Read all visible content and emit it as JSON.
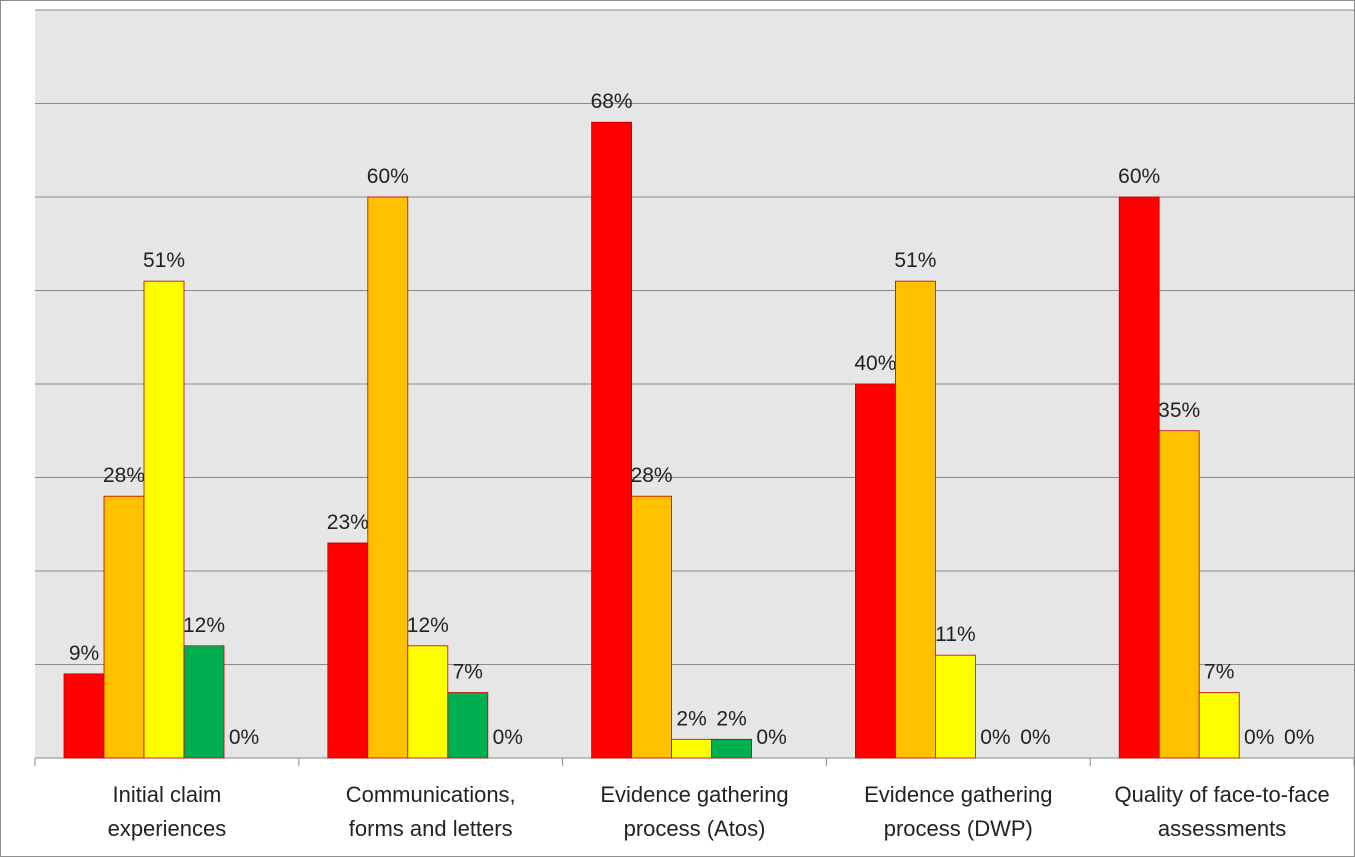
{
  "chart_data": {
    "type": "bar",
    "categories": [
      [
        "Initial claim",
        "experiences"
      ],
      [
        "Communications,",
        "forms and letters"
      ],
      [
        "Evidence gathering",
        "process (Atos)"
      ],
      [
        "Evidence gathering",
        "process (DWP)"
      ],
      [
        "Quality of face-to-face",
        "assessments"
      ]
    ],
    "series": [
      {
        "values": [
          9,
          23,
          68,
          40,
          60
        ],
        "labels": [
          "9%",
          "23%",
          "68%",
          "40%",
          "60%"
        ]
      },
      {
        "values": [
          28,
          60,
          28,
          51,
          35
        ],
        "labels": [
          "28%",
          "60%",
          "28%",
          "51%",
          "35%"
        ]
      },
      {
        "values": [
          51,
          12,
          2,
          11,
          7
        ],
        "labels": [
          "51%",
          "12%",
          "2%",
          "11%",
          "7%"
        ]
      },
      {
        "values": [
          12,
          7,
          2,
          0,
          0
        ],
        "labels": [
          "12%",
          "7%",
          "2%",
          "0%",
          "0%"
        ]
      },
      {
        "values": [
          0,
          0,
          0,
          0,
          0
        ],
        "labels": [
          "0%",
          "0%",
          "0%",
          "0%",
          "0%"
        ]
      }
    ],
    "colors": [
      "#ff0000",
      "#ffc000",
      "#ffff00",
      "#00b050",
      "#ffffff"
    ],
    "ylim": [
      0,
      80
    ],
    "ytick_step": 10,
    "grid": true,
    "legend": "none"
  }
}
